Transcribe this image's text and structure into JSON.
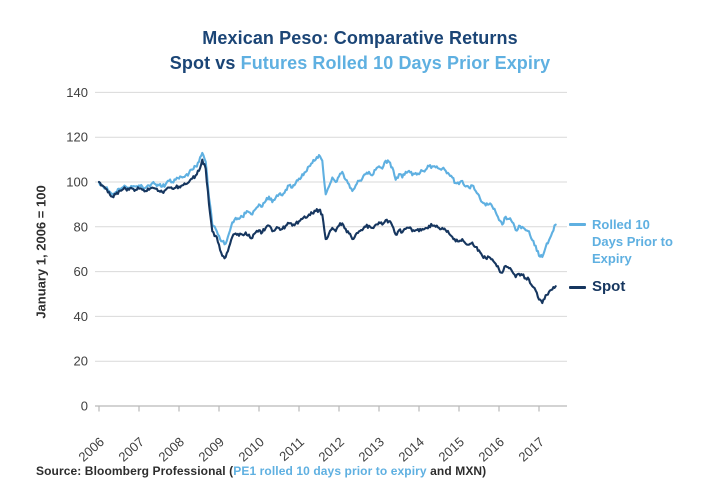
{
  "title": {
    "line1": "Mexican Peso: Comparative Returns",
    "line2_dark": "Spot vs ",
    "line2_light": "Futures Rolled 10 Days Prior Expiry"
  },
  "y_axis": {
    "title": "January 1, 2006 = 100",
    "ticks": [
      0,
      20,
      40,
      60,
      80,
      100,
      120,
      140
    ]
  },
  "x_axis": {
    "ticks": [
      "2006",
      "2007",
      "2008",
      "2009",
      "2010",
      "2011",
      "2012",
      "2013",
      "2014",
      "2015",
      "2016",
      "2017"
    ]
  },
  "legend": {
    "futures": {
      "lines": [
        "Rolled 10",
        "Days Prior to",
        "Expiry"
      ]
    },
    "spot": {
      "label": "Spot"
    }
  },
  "source": {
    "prefix": "Source: Bloomberg Professional (",
    "highlight": "PE1 rolled 10 days prior to expiry",
    "suffix": " and MXN)"
  },
  "colors": {
    "title_navy": "#1b4576",
    "navy": "#16365f",
    "light_blue": "#5fb0e1",
    "grid": "#d9d9d9",
    "axis": "#b9b9b9",
    "tick_text": "#3f3f3f",
    "source_dark": "#2d2d2d"
  },
  "chart_data": {
    "type": "line",
    "title": "Mexican Peso: Comparative Returns — Spot vs Futures Rolled 10 Days Prior Expiry",
    "ylabel": "January 1, 2006 = 100",
    "xlabel": "",
    "xlim": [
      2006,
      2017.75
    ],
    "ylim": [
      0,
      140
    ],
    "grid": "horizontal",
    "legend_position": "right-of-line-ends",
    "x_start": 2006.0,
    "x_step_years": 0.083333,
    "series": [
      {
        "name": "Rolled 10 Days Prior to Expiry",
        "color_key": "light_blue",
        "values": [
          100,
          98.5,
          97.5,
          96,
          94.5,
          95.5,
          97,
          97.5,
          98,
          97.5,
          98,
          98,
          98.5,
          98,
          97.5,
          98.5,
          99.5,
          99,
          98.5,
          98,
          99,
          100.5,
          100,
          101,
          101.5,
          102,
          103,
          104,
          105.5,
          107,
          109,
          113,
          109,
          93,
          81,
          79,
          76,
          73.5,
          72.5,
          77,
          82,
          84,
          83.5,
          84.5,
          86,
          86.5,
          85.5,
          88,
          90,
          89,
          91.5,
          93.5,
          91,
          93,
          94.5,
          94,
          96.5,
          98.5,
          97.5,
          99.5,
          101.5,
          103.5,
          104.5,
          107,
          108.5,
          110,
          112,
          109.5,
          94.5,
          98,
          102,
          100,
          102.5,
          104.5,
          101,
          99,
          96,
          98.5,
          100.5,
          101.5,
          103.5,
          104.5,
          103,
          105.5,
          107,
          106,
          109.5,
          109,
          106.5,
          101,
          103.5,
          102,
          104.5,
          105,
          103,
          104,
          103.5,
          105,
          105.5,
          107,
          107,
          106.5,
          106,
          106,
          105,
          103.5,
          102,
          99.5,
          99,
          100.5,
          98,
          97.5,
          98.5,
          96,
          94,
          91,
          89.5,
          90,
          89,
          86.5,
          83,
          81,
          84.5,
          83.5,
          82,
          78.5,
          80.5,
          80,
          78.5,
          78,
          74,
          71.5,
          67,
          66.5,
          71,
          74,
          77.5,
          81
        ]
      },
      {
        "name": "Spot",
        "color_key": "navy",
        "values": [
          100,
          98.5,
          97,
          95.5,
          93.5,
          94.5,
          96,
          96.5,
          97,
          96.5,
          97,
          96.5,
          97,
          96.5,
          96,
          96.5,
          97.5,
          97,
          96,
          95.5,
          96.5,
          97.5,
          97,
          97.5,
          98,
          98.5,
          99,
          100,
          101.5,
          103,
          105,
          110,
          106,
          90,
          78,
          76,
          72,
          67,
          66.5,
          71,
          75.5,
          77,
          76,
          76.5,
          77.5,
          76.5,
          75,
          77.5,
          78.5,
          77.5,
          79.5,
          80.5,
          78,
          79,
          79.5,
          79,
          80.5,
          81.5,
          80.5,
          81.5,
          82.5,
          83.5,
          84,
          85.5,
          86,
          87,
          87.5,
          85.5,
          74.5,
          77,
          79.5,
          78,
          80.5,
          81.5,
          79,
          77,
          74.5,
          76.5,
          78,
          78.5,
          80,
          80.5,
          79.5,
          81,
          82,
          81,
          83,
          82.5,
          80.5,
          76.5,
          78.5,
          77.5,
          79,
          79.5,
          78,
          78.5,
          78,
          79,
          79.5,
          80.5,
          80.5,
          80,
          79.5,
          79.5,
          78.5,
          77,
          75.5,
          73.5,
          73.5,
          74.5,
          72.5,
          72,
          73,
          71,
          69.5,
          67,
          66,
          66.5,
          65.5,
          63.5,
          61,
          59.5,
          62.5,
          61.5,
          60,
          57.5,
          59,
          58.5,
          57,
          56.5,
          53.5,
          51.5,
          47.5,
          46,
          49.5,
          51,
          52,
          53.5
        ]
      }
    ]
  }
}
